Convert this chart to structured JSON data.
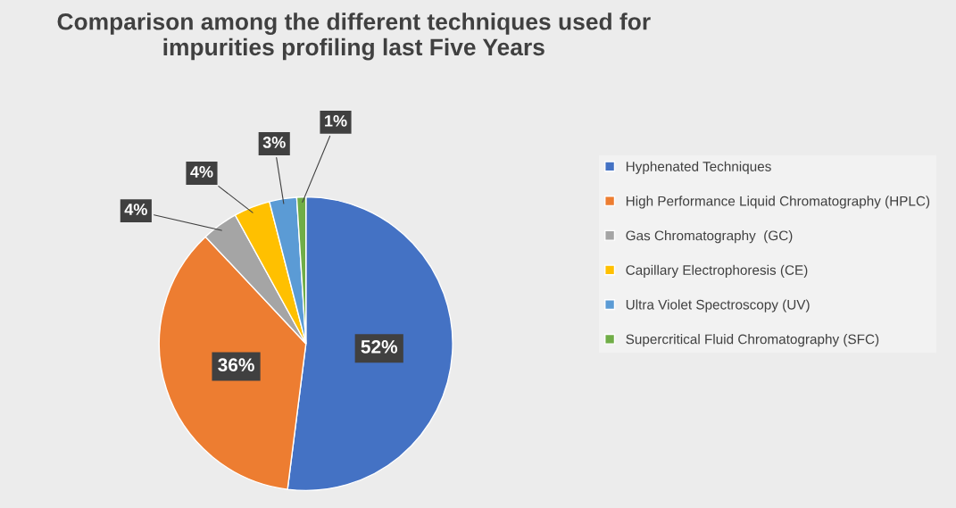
{
  "chart_data": {
    "type": "pie",
    "title": "Comparison among the different techniques used for impurities profiling last Five Years",
    "categories": [
      "Hyphenated Techniques",
      "High Performance Liquid Chromatography (HPLC)",
      "Gas Chromatography  (GC)",
      "Capillary Electrophoresis (CE)",
      "Ultra Violet Spectroscopy (UV)",
      "Supercritical Fluid Chromatography (SFC)"
    ],
    "values": [
      52,
      36,
      4,
      4,
      3,
      1
    ],
    "colors": [
      "#4472c4",
      "#ed7d31",
      "#a5a5a5",
      "#ffc000",
      "#5b9bd5",
      "#70ad47"
    ],
    "value_labels": [
      "52%",
      "36%",
      "4%",
      "4%",
      "3%",
      "1%"
    ],
    "legend": "right"
  }
}
